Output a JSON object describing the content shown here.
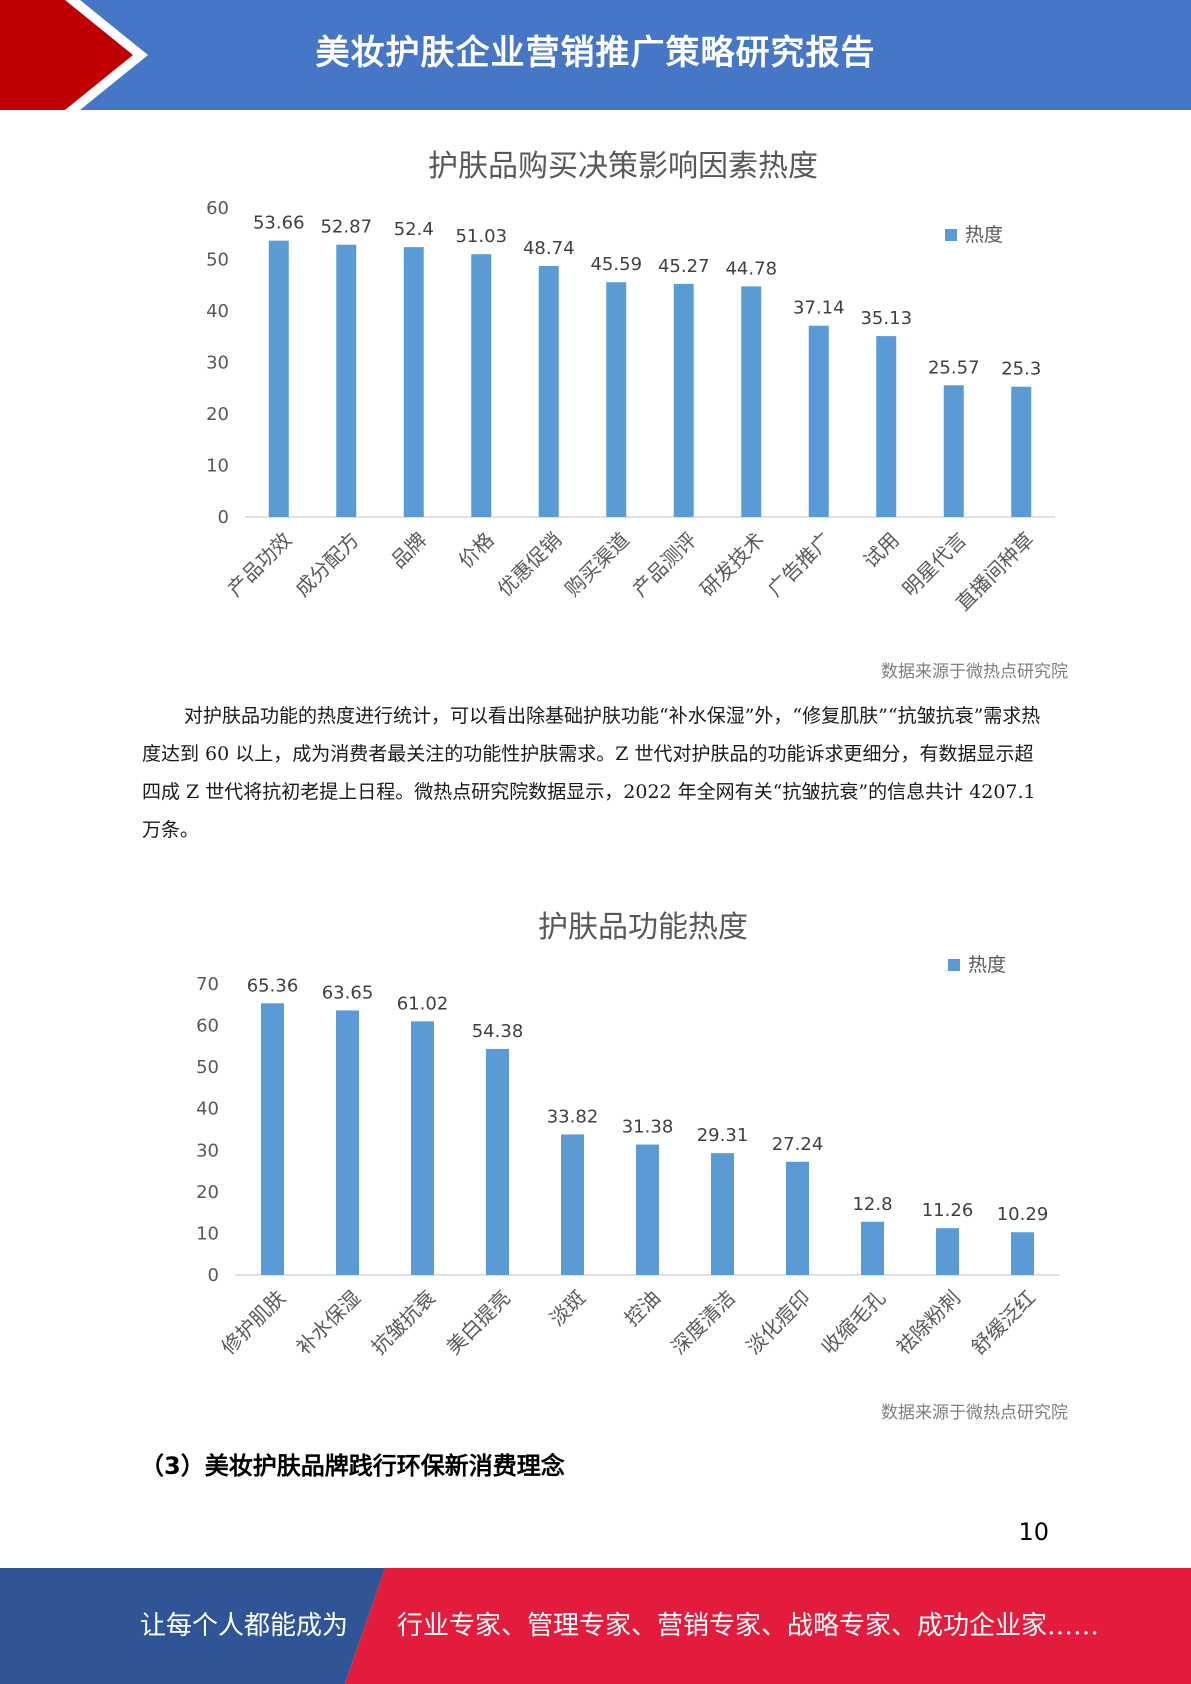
{
  "header": {
    "title": "美妆护肤企业营销推广策略研究报告"
  },
  "colors": {
    "header_blue": "#4676c6",
    "header_red": "#c00000",
    "bar": "#5b9bd5",
    "footer_blue": "#2f5597",
    "footer_red": "#e31b3c"
  },
  "chart_data": [
    {
      "type": "bar",
      "title": "护肤品购买决策影响因素热度",
      "legend": "热度",
      "legend_position": "top-right",
      "categories": [
        "产品功效",
        "成分配方",
        "品牌",
        "价格",
        "优惠促销",
        "购买渠道",
        "产品测评",
        "研发技术",
        "广告推广",
        "试用",
        "明星代言",
        "直播间种草"
      ],
      "values": [
        53.66,
        52.87,
        52.4,
        51.03,
        48.74,
        45.59,
        45.27,
        44.78,
        37.14,
        35.13,
        25.57,
        25.3
      ],
      "value_labels": [
        "53.66",
        "52.87",
        "52.4",
        "51.03",
        "48.74",
        "45.59",
        "45.27",
        "44.78",
        "37.14",
        "35.13",
        "25.57",
        "25.3"
      ],
      "ylim": [
        0,
        60
      ],
      "yticks": [
        "0",
        "10",
        "20",
        "30",
        "40",
        "50",
        "60"
      ],
      "grid": false
    },
    {
      "type": "bar",
      "title": "护肤品功能热度",
      "legend": "热度",
      "legend_position": "top-right",
      "categories": [
        "修护肌肤",
        "补水保湿",
        "抗皱抗衰",
        "美白提亮",
        "淡斑",
        "控油",
        "深度清洁",
        "淡化痘印",
        "收缩毛孔",
        "祛除粉刺",
        "舒缓泛红"
      ],
      "values": [
        65.36,
        63.65,
        61.02,
        54.38,
        33.82,
        31.38,
        29.31,
        27.24,
        12.8,
        11.26,
        10.29
      ],
      "value_labels": [
        "65.36",
        "63.65",
        "61.02",
        "54.38",
        "33.82",
        "31.38",
        "29.31",
        "27.24",
        "12.8",
        "11.26",
        "10.29"
      ],
      "ylim": [
        0,
        70
      ],
      "yticks": [
        "0",
        "10",
        "20",
        "30",
        "40",
        "50",
        "60",
        "70"
      ],
      "grid": false
    }
  ],
  "sources": [
    "数据来源于微热点研究院",
    "数据来源于微热点研究院"
  ],
  "paragraph": "对护肤品功能的热度进行统计，可以看出除基础护肤功能“补水保湿”外，“修复肌肤”“抗皱抗衰”需求热度达到 60 以上，成为消费者最关注的功能性护肤需求。Z 世代对护肤品的功能诉求更细分，有数据显示超四成 Z 世代将抗初老提上日程。微热点研究院数据显示，2022 年全网有关“抗皱抗衰”的信息共计 4207.1 万条。",
  "section_heading": "（3）美妆护肤品牌践行环保新消费理念",
  "page_number": "10",
  "footer": {
    "left_text": "让每个人都能成为",
    "right_text": "行业专家、管理专家、营销专家、战略专家、成功企业家……"
  }
}
